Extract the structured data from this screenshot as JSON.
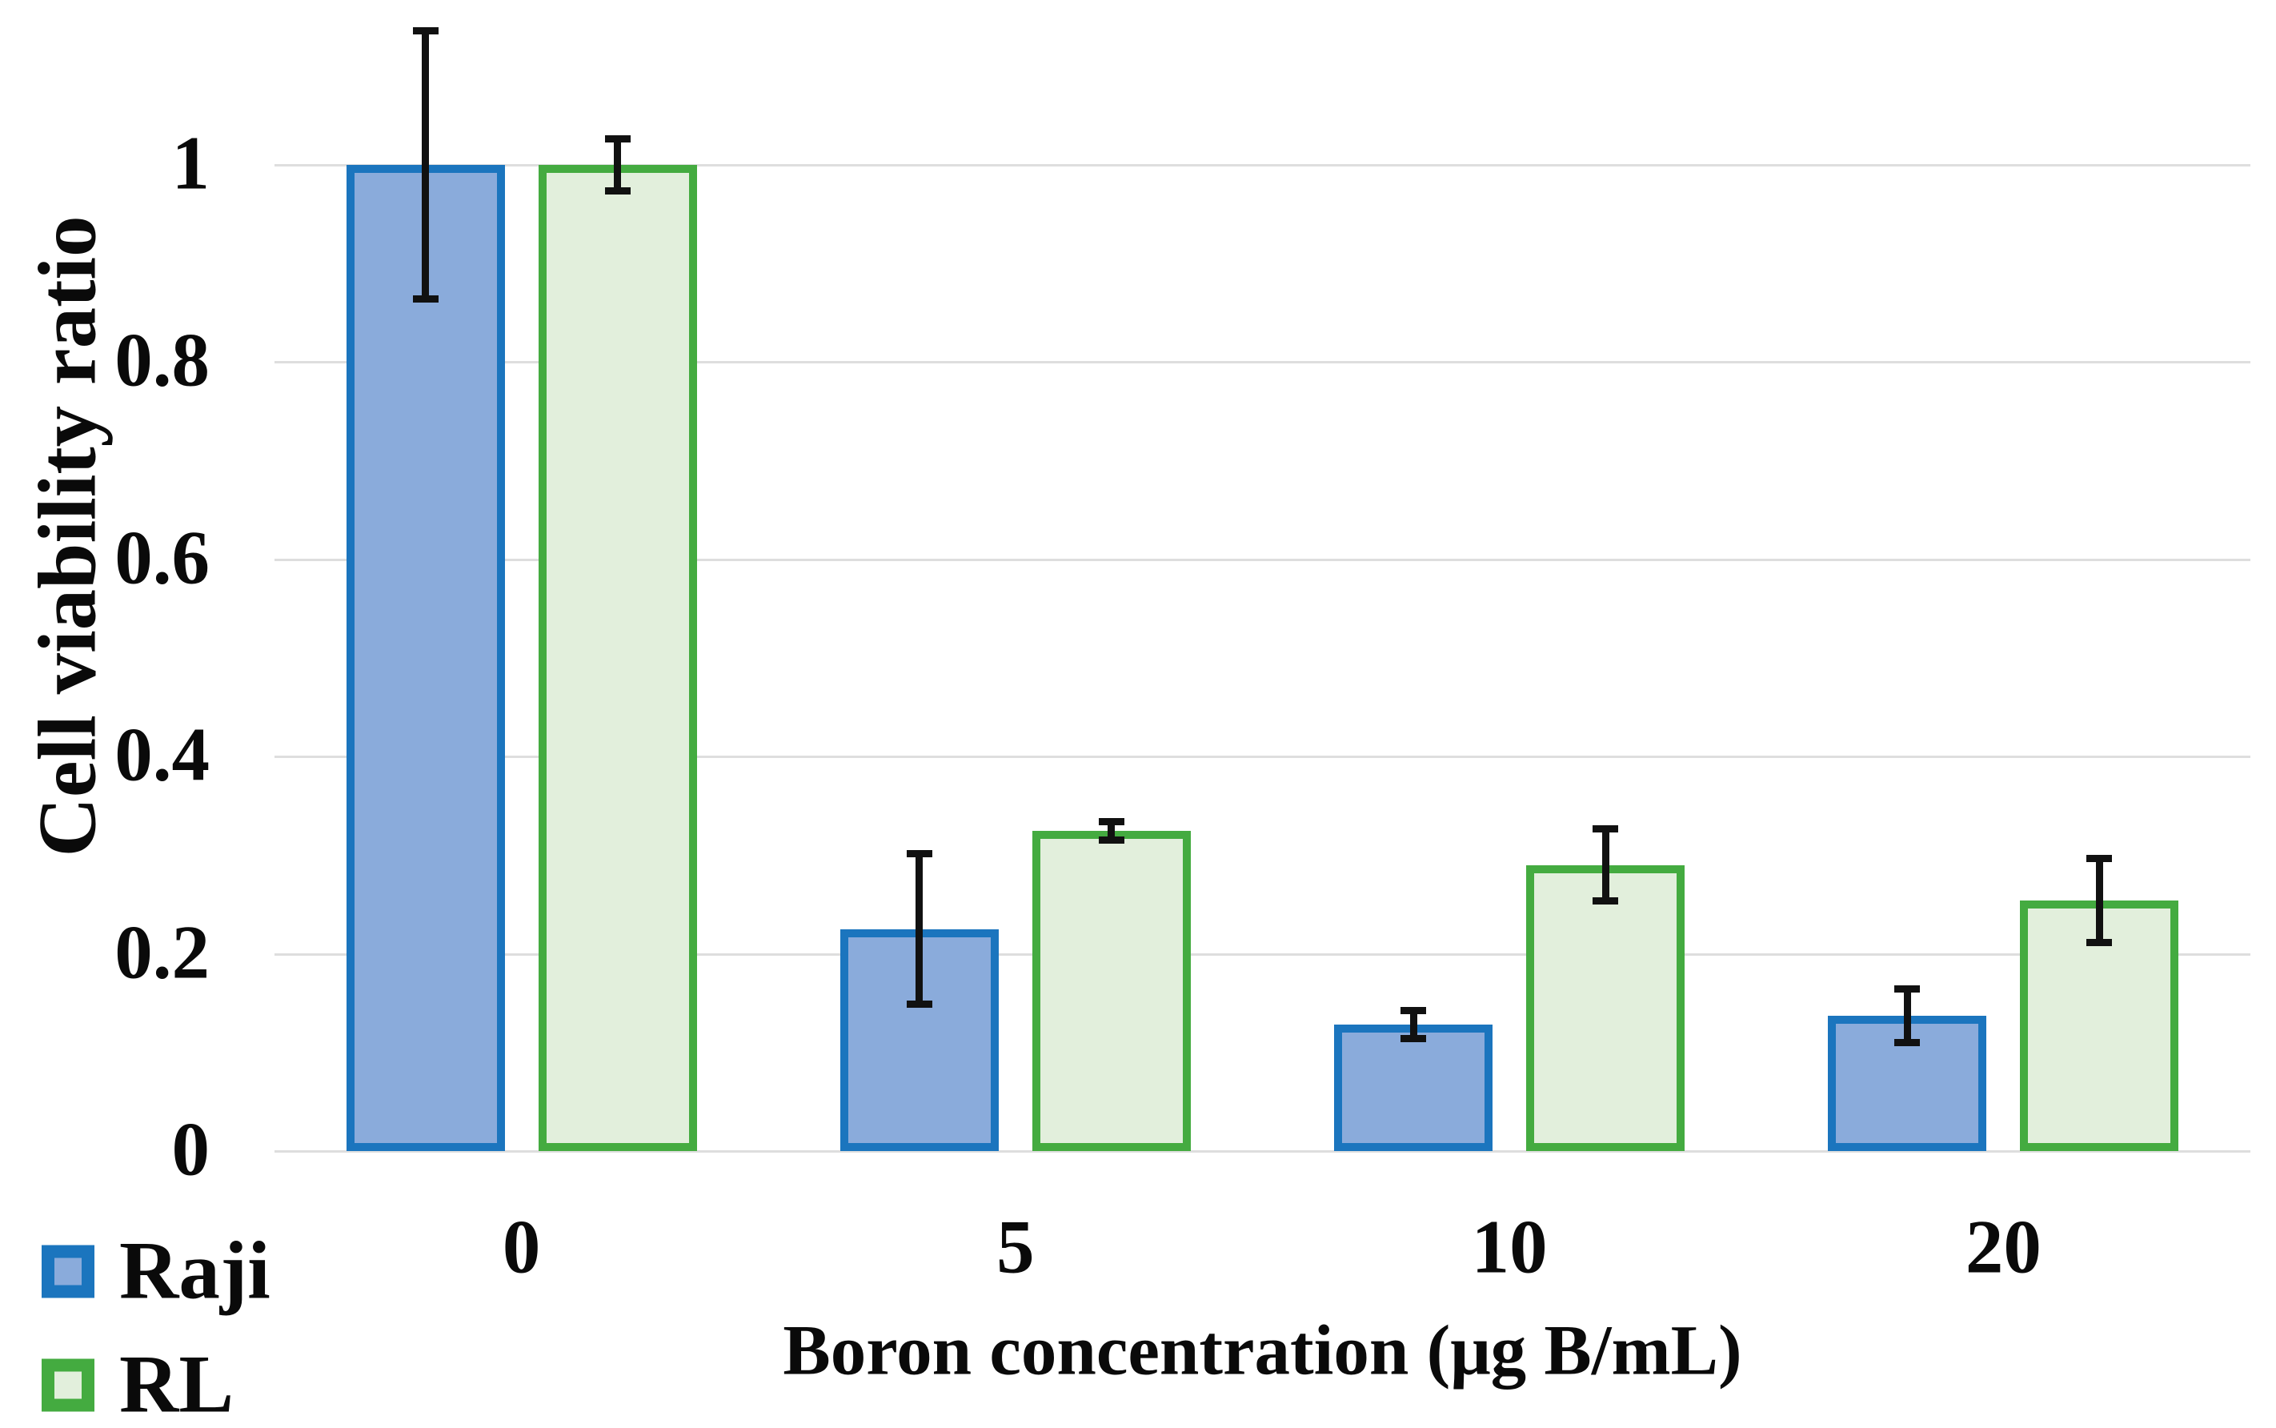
{
  "chart_data": {
    "type": "bar",
    "title": "",
    "categories": [
      "0",
      "5",
      "10",
      "20"
    ],
    "xlabel": "Boron concentration (μg B/mL)",
    "ylabel": "Cell viability ratio",
    "ylim": [
      0,
      1.15
    ],
    "yticks": [
      0,
      0.2,
      0.4,
      0.6,
      0.8,
      1
    ],
    "ytick_labels": [
      "0",
      "0.2",
      "0.4",
      "0.6",
      "0.8",
      "1"
    ],
    "grid": "horizontal",
    "legend_position": "bottom-left",
    "error_bars": true,
    "series": [
      {
        "name": "Raji",
        "fill": "#8AABDB",
        "border": "#1B75BE",
        "values": [
          1.0,
          0.225,
          0.128,
          0.137
        ],
        "errors": [
          0.14,
          0.08,
          0.018,
          0.031
        ]
      },
      {
        "name": "RL",
        "fill": "#E2EFDC",
        "border": "#44AB40",
        "values": [
          1.0,
          0.325,
          0.29,
          0.254
        ],
        "errors": [
          0.03,
          0.013,
          0.04,
          0.046
        ]
      }
    ]
  },
  "colors": {
    "background": "#FFFFFF",
    "gridline": "#DEDEDE",
    "axis_line": "#DEDEDE",
    "error_bar": "#111111",
    "text": "#0A0A0A"
  }
}
